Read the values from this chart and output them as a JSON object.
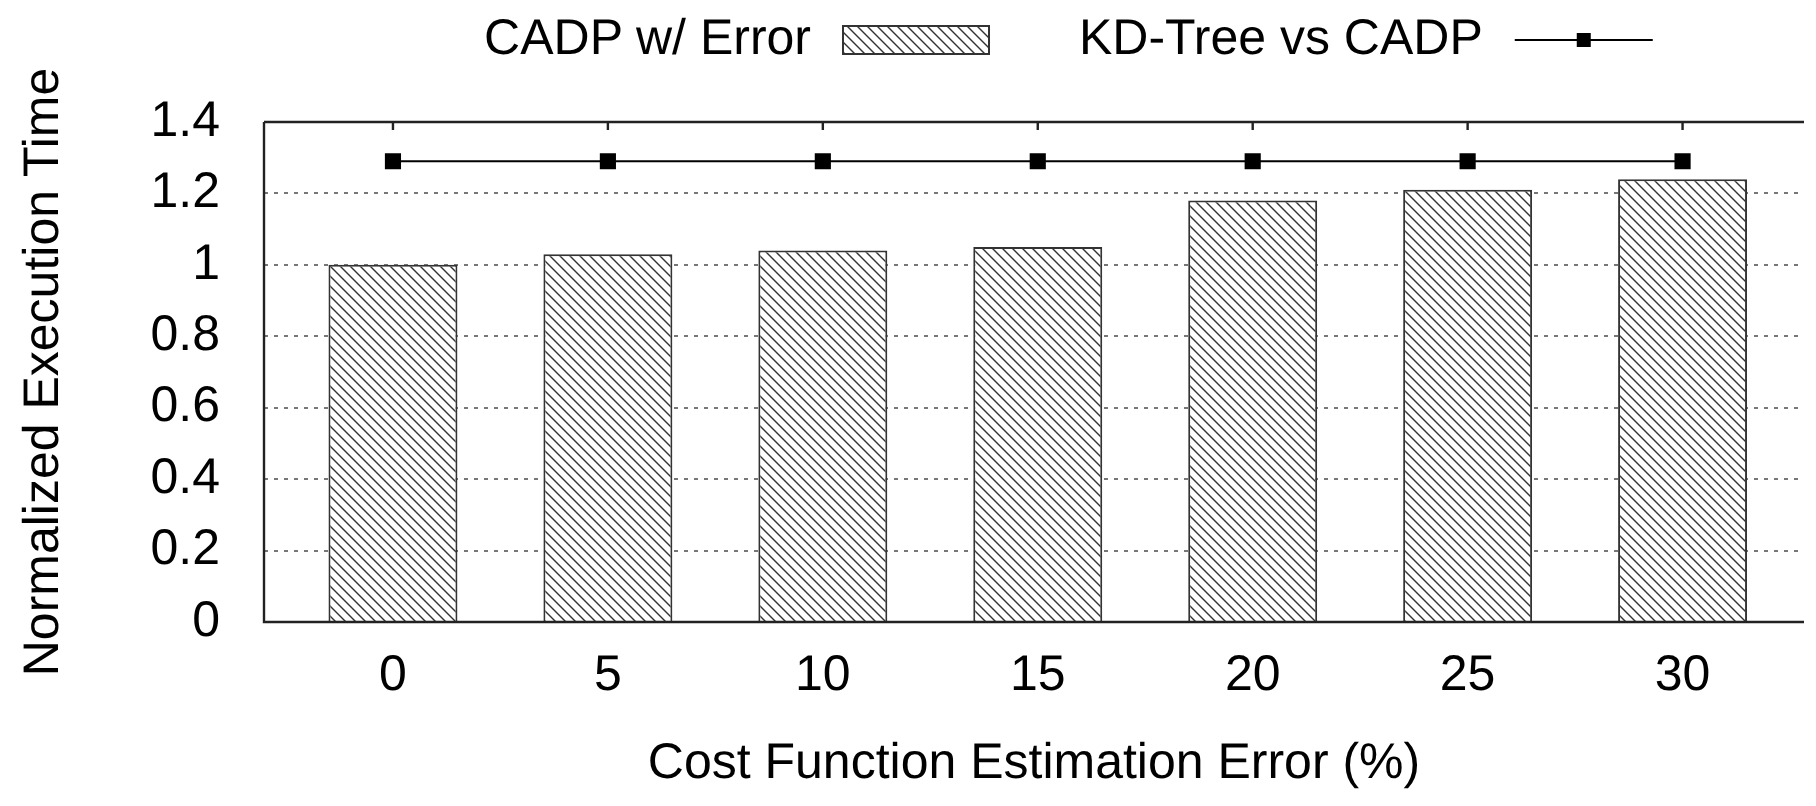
{
  "chart_data": {
    "type": "bar",
    "xlabel": "Cost Function Estimation Error (%)",
    "ylabel": "Normalized Execution Time",
    "categories": [
      "0",
      "5",
      "10",
      "15",
      "20",
      "25",
      "30"
    ],
    "series": [
      {
        "name": "CADP w/ Error",
        "color": "#333333",
        "values": [
          1.0,
          1.03,
          1.04,
          1.05,
          1.18,
          1.21,
          1.24
        ]
      },
      {
        "name": "KD-Tree vs CADP",
        "type": "line",
        "color": "#000000",
        "values": [
          1.29,
          1.29,
          1.29,
          1.29,
          1.29,
          1.29,
          1.29
        ]
      }
    ],
    "ylim": [
      0,
      1.4
    ],
    "yticks": [
      0,
      0.2,
      0.4,
      0.6,
      0.8,
      1,
      1.2,
      1.4
    ],
    "grid": "y",
    "legend": "top",
    "marker": "square",
    "line_style": "solid"
  }
}
